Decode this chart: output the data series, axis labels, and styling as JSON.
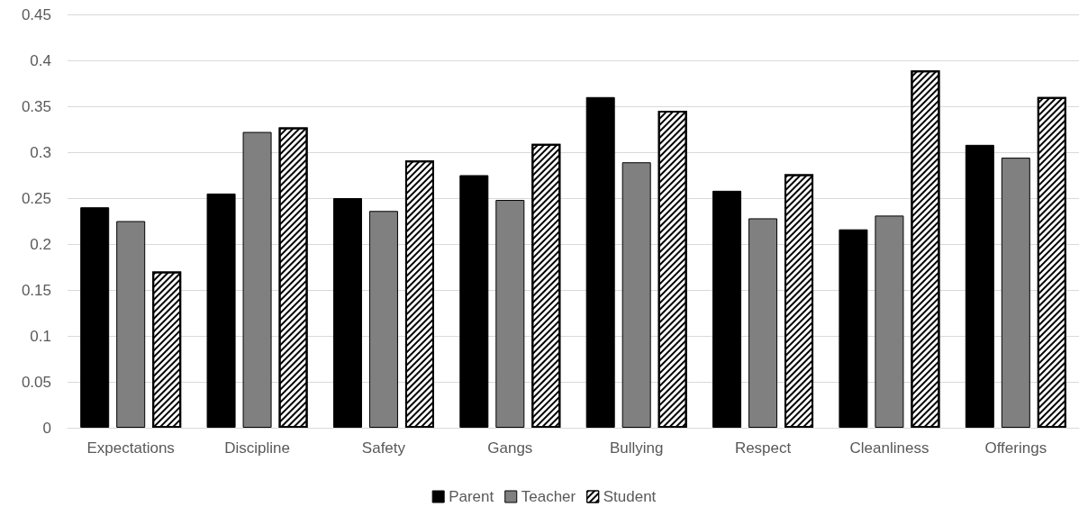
{
  "chart_data": {
    "type": "bar",
    "categories": [
      "Expectations",
      "Discipline",
      "Safety",
      "Gangs",
      "Bullying",
      "Respect",
      "Cleanliness",
      "Offerings"
    ],
    "series": [
      {
        "name": "Parent",
        "color": "#000000",
        "values": [
          0.24,
          0.255,
          0.25,
          0.275,
          0.36,
          0.258,
          0.216,
          0.308
        ]
      },
      {
        "name": "Teacher",
        "color": "#808080",
        "values": [
          0.225,
          0.322,
          0.236,
          0.248,
          0.289,
          0.228,
          0.231,
          0.294
        ]
      },
      {
        "name": "Student",
        "color": "#ffffff",
        "values": [
          0.17,
          0.327,
          0.291,
          0.309,
          0.345,
          0.276,
          0.389,
          0.36
        ]
      }
    ],
    "ylim": [
      0,
      0.45
    ],
    "yticks": [
      0,
      0.05,
      0.1,
      0.15,
      0.2,
      0.25,
      0.3,
      0.35,
      0.4,
      0.45
    ],
    "grid": "y",
    "legend": "bottom"
  }
}
